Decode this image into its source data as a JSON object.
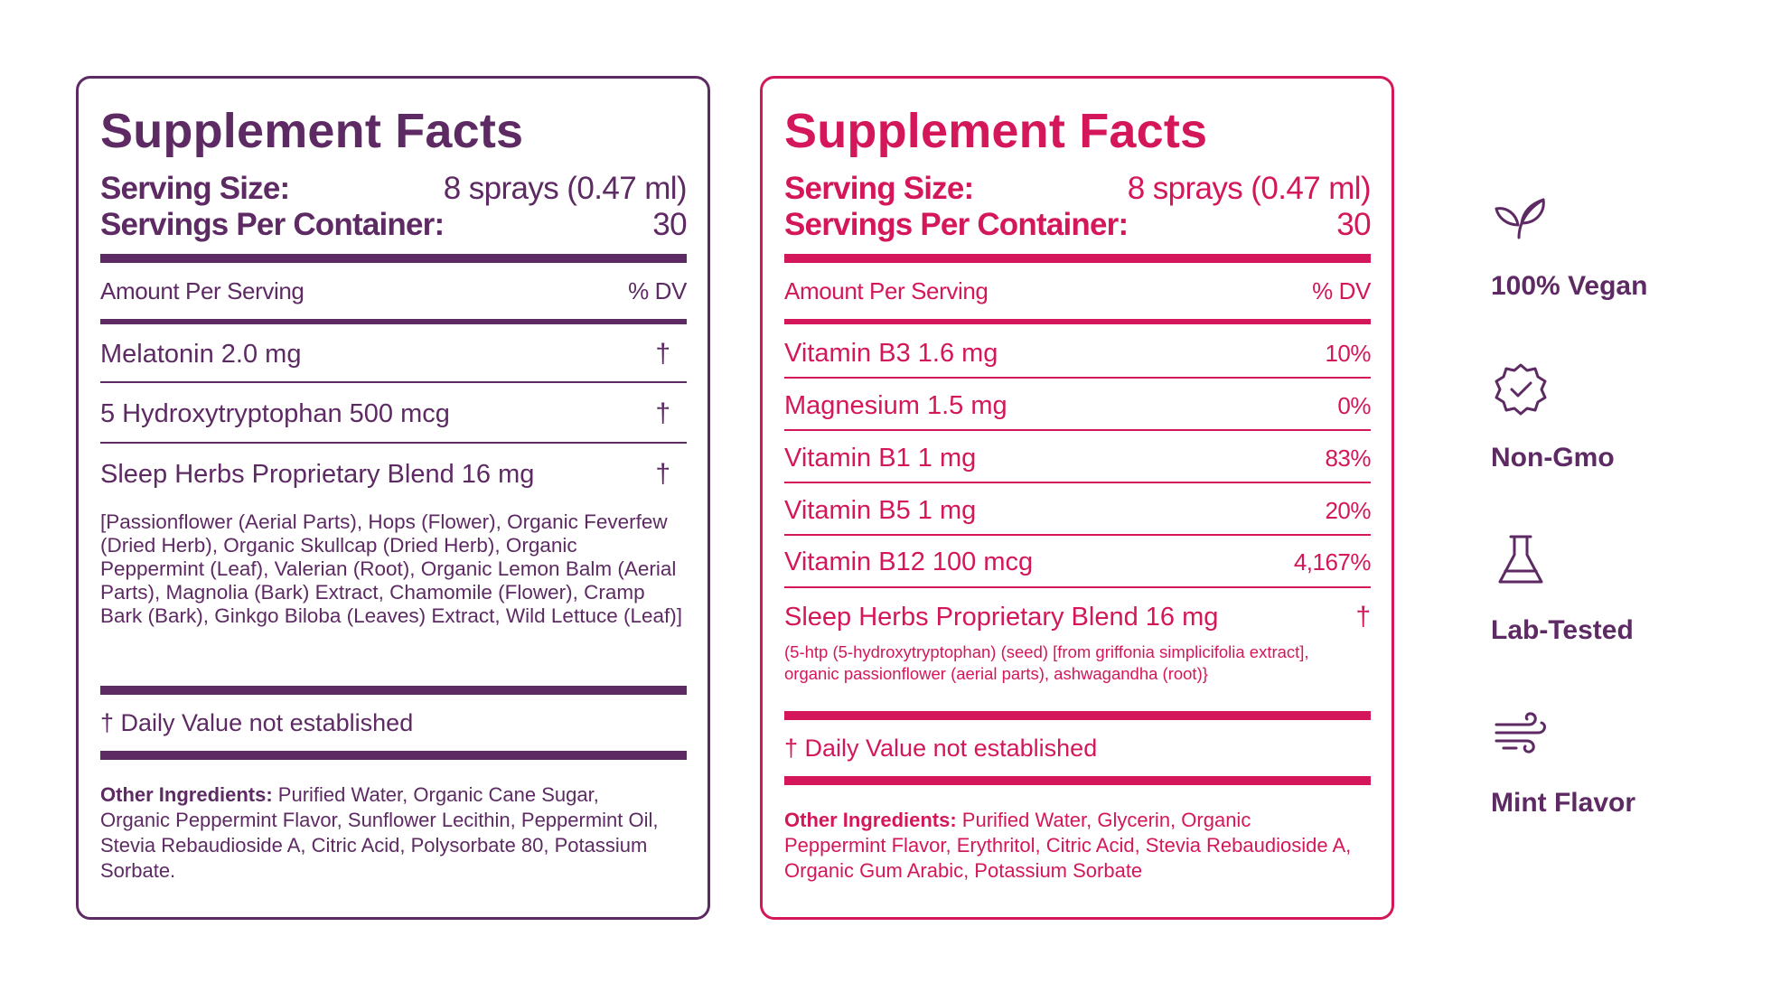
{
  "colors": {
    "purple": "#5d2a63",
    "pink": "#d4175a"
  },
  "panel_a": {
    "title": "Supplement Facts",
    "serving_size_label": "Serving Size:",
    "serving_size_value": "8 sprays (0.47 ml)",
    "servings_per_label": "Servings Per Container:",
    "servings_per_value": "30",
    "amount_label": "Amount Per Serving",
    "dv_label": "% DV",
    "rows": [
      {
        "name": "Melatonin 2.0 mg",
        "dv": "†"
      },
      {
        "name": "5 Hydroxytryptophan 500 mcg",
        "dv": "†"
      },
      {
        "name": "Sleep Herbs Proprietary Blend 16 mg",
        "dv": "†"
      }
    ],
    "blend_description": "[Passionflower (Aerial Parts), Hops (Flower), Organic Feverfew (Dried Herb), Organic Skullcap (Dried Herb), Organic Peppermint (Leaf), Valerian (Root), Organic Lemon Balm (Aerial Parts), Magnolia (Bark) Extract, Chamomile (Flower), Cramp Bark (Bark), Ginkgo Biloba (Leaves) Extract, Wild Lettuce (Leaf)]",
    "dv_note": "† Daily Value not established",
    "other_label": "Other Ingredients:",
    "other_text": " Purified Water, Organic Cane Sugar, Organic Peppermint Flavor, Sunflower Lecithin, Peppermint Oil, Stevia Rebaudioside A, Citric Acid, Polysorbate 80, Potassium Sorbate."
  },
  "panel_b": {
    "title": "Supplement Facts",
    "serving_size_label": "Serving Size:",
    "serving_size_value": "8 sprays (0.47 ml)",
    "servings_per_label": "Servings Per Container:",
    "servings_per_value": "30",
    "amount_label": "Amount Per Serving",
    "dv_label": "% DV",
    "rows": [
      {
        "name": "Vitamin B3 1.6 mg",
        "dv": "10%"
      },
      {
        "name": "Magnesium 1.5 mg",
        "dv": "0%"
      },
      {
        "name": "Vitamin B1 1 mg",
        "dv": "83%"
      },
      {
        "name": "Vitamin B5 1 mg",
        "dv": "20%"
      },
      {
        "name": "Vitamin B12 100 mcg",
        "dv": "4,167%"
      },
      {
        "name": "Sleep Herbs Proprietary Blend 16 mg",
        "dv": "†"
      }
    ],
    "blend_description": "(5-htp (5-hydroxytryptophan) (seed) [from griffonia simplicifolia extract], organic passionflower (aerial parts), ashwagandha (root)}",
    "dv_note": "† Daily Value not established",
    "other_label": "Other Ingredients:",
    "other_text": " Purified Water, Glycerin, Organic Peppermint Flavor, Erythritol, Citric Acid, Stevia Rebaudioside A, Organic Gum Arabic, Potassium Sorbate"
  },
  "features": [
    {
      "icon": "leaf-icon",
      "label": "100% Vegan"
    },
    {
      "icon": "badge-check-icon",
      "label": "Non-Gmo"
    },
    {
      "icon": "flask-icon",
      "label": "Lab-Tested"
    },
    {
      "icon": "wind-icon",
      "label": "Mint Flavor"
    }
  ]
}
